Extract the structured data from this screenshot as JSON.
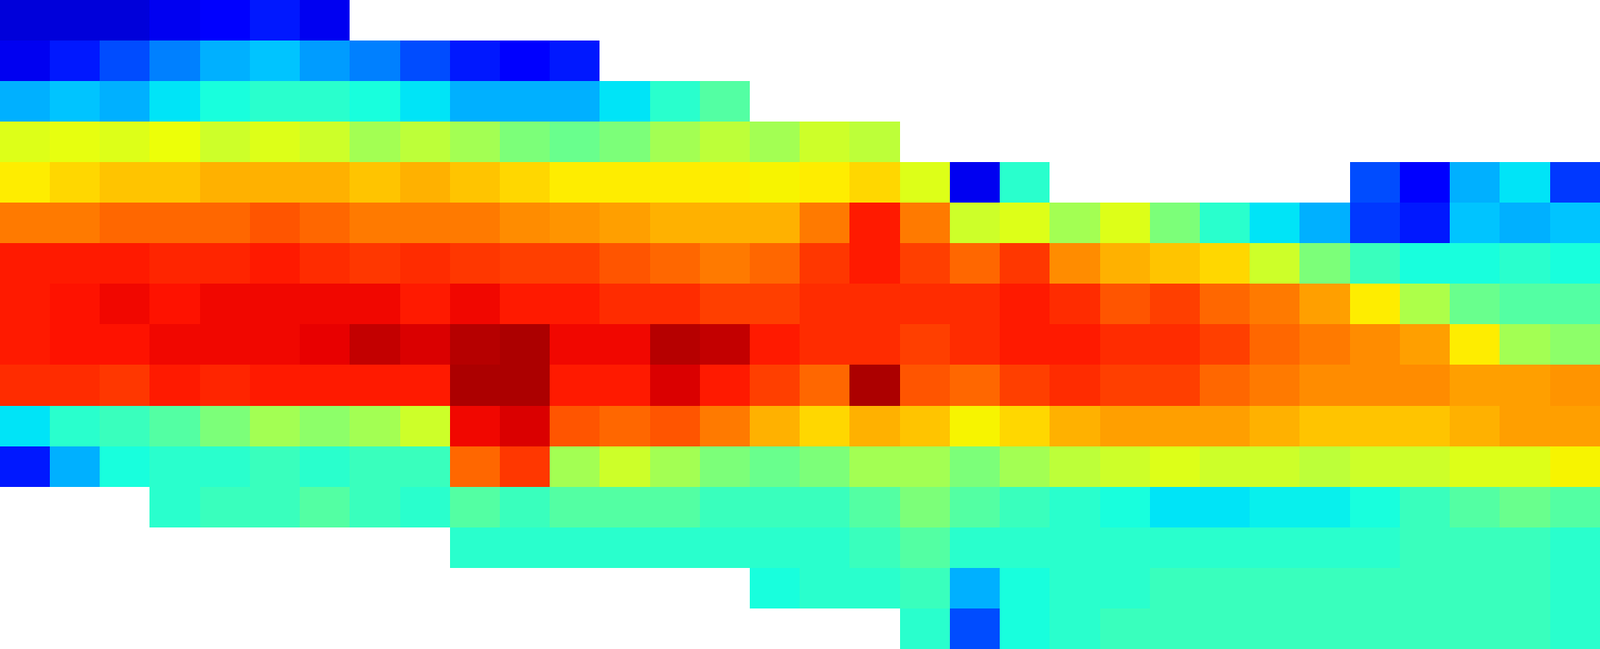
{
  "chart_data": {
    "type": "heatmap",
    "color": "jet",
    "tick_labels": false,
    "color_range": [
      0,
      100
    ],
    "cells_by_column": [
      [
        8,
        10,
        30,
        62,
        66,
        78,
        88,
        88,
        88,
        86,
        35,
        15,
        null,
        null,
        null,
        null
      ],
      [
        8,
        15,
        32,
        63,
        68,
        78,
        88,
        89,
        89,
        86,
        40,
        30,
        null,
        null,
        null,
        null
      ],
      [
        8,
        20,
        30,
        62,
        70,
        80,
        88,
        90,
        89,
        85,
        42,
        38,
        null,
        null,
        null,
        null
      ],
      [
        10,
        25,
        35,
        64,
        70,
        80,
        87,
        89,
        90,
        88,
        45,
        40,
        40,
        null,
        null,
        null
      ],
      [
        12,
        30,
        38,
        60,
        72,
        80,
        87,
        90,
        90,
        87,
        50,
        40,
        42,
        null,
        null,
        null
      ],
      [
        15,
        32,
        40,
        62,
        72,
        82,
        88,
        90,
        90,
        88,
        55,
        42,
        42,
        null,
        null,
        null
      ],
      [
        10,
        28,
        40,
        60,
        72,
        80,
        86,
        90,
        91,
        88,
        52,
        40,
        45,
        null,
        null,
        null
      ],
      [
        null,
        25,
        38,
        55,
        70,
        78,
        85,
        90,
        94,
        88,
        55,
        42,
        42,
        null,
        null,
        null
      ],
      [
        null,
        20,
        35,
        58,
        72,
        78,
        86,
        88,
        92,
        88,
        60,
        42,
        40,
        null,
        null,
        null
      ],
      [
        null,
        15,
        30,
        55,
        70,
        78,
        85,
        90,
        95,
        96,
        90,
        80,
        45,
        40,
        null,
        null
      ],
      [
        null,
        12,
        30,
        50,
        68,
        76,
        84,
        88,
        96,
        96,
        92,
        85,
        42,
        40,
        null,
        null
      ],
      [
        null,
        15,
        30,
        48,
        66,
        75,
        84,
        88,
        90,
        88,
        82,
        55,
        45,
        40,
        null,
        null
      ],
      [
        null,
        null,
        35,
        50,
        66,
        74,
        82,
        86,
        90,
        88,
        80,
        60,
        45,
        40,
        null,
        null
      ],
      [
        null,
        null,
        40,
        55,
        66,
        72,
        80,
        86,
        95,
        92,
        82,
        55,
        45,
        40,
        null,
        null
      ],
      [
        null,
        null,
        45,
        58,
        66,
        72,
        78,
        84,
        94,
        88,
        78,
        50,
        42,
        40,
        null,
        null
      ],
      [
        null,
        null,
        null,
        55,
        65,
        72,
        80,
        84,
        88,
        84,
        72,
        48,
        42,
        40,
        38,
        null
      ],
      [
        null,
        null,
        null,
        60,
        66,
        78,
        85,
        86,
        86,
        80,
        68,
        50,
        42,
        40,
        40,
        null
      ],
      [
        null,
        null,
        null,
        58,
        68,
        88,
        88,
        86,
        86,
        96,
        72,
        55,
        45,
        42,
        40,
        null
      ],
      [
        null,
        null,
        null,
        null,
        62,
        78,
        84,
        86,
        84,
        82,
        70,
        55,
        50,
        45,
        42,
        40
      ],
      [
        null,
        null,
        null,
        null,
        10,
        60,
        80,
        86,
        86,
        80,
        65,
        50,
        45,
        40,
        30,
        20
      ],
      [
        null,
        null,
        null,
        null,
        40,
        62,
        85,
        88,
        88,
        84,
        68,
        55,
        42,
        40,
        38,
        38
      ],
      [
        null,
        null,
        null,
        null,
        null,
        55,
        76,
        86,
        88,
        86,
        72,
        58,
        40,
        40,
        40,
        40
      ],
      [
        null,
        null,
        null,
        null,
        null,
        62,
        72,
        82,
        86,
        84,
        74,
        60,
        38,
        40,
        40,
        42
      ],
      [
        null,
        null,
        null,
        null,
        null,
        50,
        70,
        84,
        86,
        84,
        74,
        62,
        35,
        40,
        42,
        42
      ],
      [
        null,
        null,
        null,
        null,
        null,
        40,
        68,
        80,
        84,
        80,
        74,
        60,
        35,
        40,
        42,
        42
      ],
      [
        null,
        null,
        null,
        null,
        null,
        35,
        60,
        78,
        80,
        78,
        72,
        60,
        36,
        40,
        42,
        42
      ],
      [
        null,
        null,
        null,
        null,
        null,
        30,
        50,
        74,
        78,
        76,
        70,
        58,
        36,
        40,
        42,
        42
      ],
      [
        null,
        null,
        null,
        null,
        20,
        18,
        42,
        66,
        76,
        76,
        70,
        60,
        38,
        40,
        42,
        42
      ],
      [
        null,
        null,
        null,
        null,
        12,
        15,
        38,
        56,
        74,
        76,
        70,
        60,
        42,
        42,
        42,
        42
      ],
      [
        null,
        null,
        null,
        null,
        30,
        32,
        38,
        48,
        66,
        74,
        72,
        62,
        45,
        42,
        42,
        42
      ],
      [
        null,
        null,
        null,
        null,
        35,
        30,
        40,
        45,
        55,
        74,
        74,
        62,
        48,
        42,
        42,
        42
      ],
      [
        null,
        null,
        null,
        null,
        18,
        32,
        38,
        45,
        52,
        75,
        74,
        65,
        45,
        40,
        40,
        40
      ]
    ]
  }
}
